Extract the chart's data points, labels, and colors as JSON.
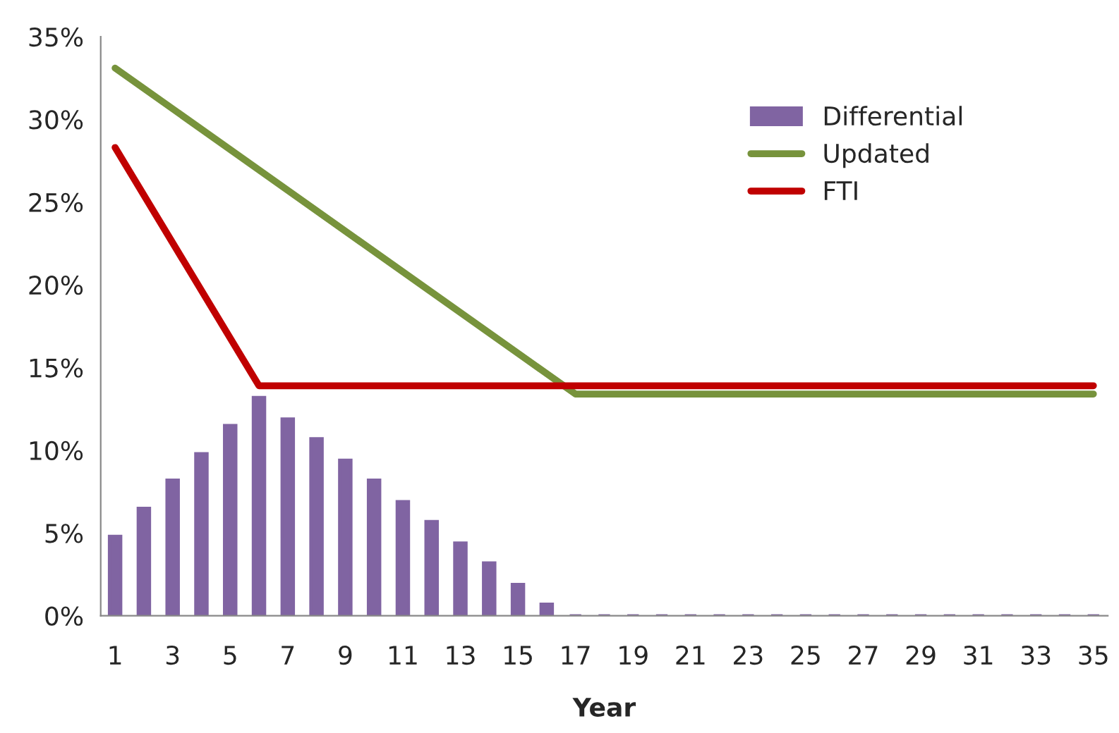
{
  "chart_data": {
    "type": "bar",
    "xlabel": "Year",
    "x": [
      1,
      2,
      3,
      4,
      5,
      6,
      7,
      8,
      9,
      10,
      11,
      12,
      13,
      14,
      15,
      16,
      17,
      18,
      19,
      20,
      21,
      22,
      23,
      24,
      25,
      26,
      27,
      28,
      29,
      30,
      31,
      32,
      33,
      34,
      35
    ],
    "series": [
      {
        "name": "Differential",
        "color": "#8064a2",
        "values": [
          4.8,
          6.5,
          8.2,
          9.8,
          11.5,
          13.2,
          11.9,
          10.7,
          9.4,
          8.2,
          6.9,
          5.7,
          4.4,
          3.2,
          1.9,
          0.7,
          0,
          0,
          0,
          0,
          0,
          0,
          0,
          0,
          0,
          0,
          0,
          0,
          0,
          0,
          0,
          0,
          0,
          0,
          0
        ]
      },
      {
        "name": "Updated",
        "type": "line",
        "color": "#77933c",
        "x": [
          1,
          17,
          35
        ],
        "values": [
          33.1,
          13.4,
          13.4
        ]
      },
      {
        "name": "FTI",
        "type": "line",
        "color": "#c00000",
        "x": [
          1,
          6,
          35
        ],
        "values": [
          28.3,
          13.9,
          13.9
        ]
      }
    ],
    "xlim": [
      0.5,
      35.5
    ],
    "xticks": [
      1,
      3,
      5,
      7,
      9,
      11,
      13,
      15,
      17,
      19,
      21,
      23,
      25,
      27,
      29,
      31,
      33,
      35
    ],
    "ylim": [
      0,
      35
    ],
    "yticks": [
      {
        "value": 0,
        "label": "0%"
      },
      {
        "value": 5,
        "label": "5%"
      },
      {
        "value": 10,
        "label": "10%"
      },
      {
        "value": 15,
        "label": "15%"
      },
      {
        "value": 20,
        "label": "20%"
      },
      {
        "value": 25,
        "label": "25%"
      },
      {
        "value": 30,
        "label": "30%"
      },
      {
        "value": 35,
        "label": "35%"
      }
    ],
    "grid": false,
    "legend": "top right",
    "marker": "none",
    "line_style": "solid"
  }
}
